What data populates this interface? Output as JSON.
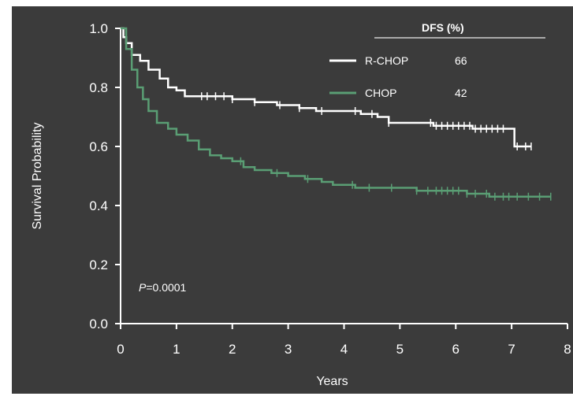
{
  "chart_data": {
    "type": "line",
    "title": "",
    "xlabel": "Years",
    "ylabel": "Survival Probability",
    "xlim": [
      0,
      8
    ],
    "ylim": [
      0,
      1
    ],
    "x_ticks": [
      "0",
      "1",
      "2",
      "3",
      "4",
      "5",
      "6",
      "7",
      "8"
    ],
    "y_ticks": [
      "0.0",
      "0.2",
      "0.4",
      "0.6",
      "0.8",
      "1.0"
    ],
    "legend_header": "DFS (%)",
    "legend_placement": "top-right",
    "annotation_prefix": "P",
    "annotation_value": "=0.0001",
    "series": [
      {
        "name": "R-CHOP",
        "dfs": "66",
        "color": "#ffffff",
        "points": [
          [
            0,
            1.0
          ],
          [
            0.05,
            0.97
          ],
          [
            0.1,
            0.95
          ],
          [
            0.2,
            0.91
          ],
          [
            0.35,
            0.89
          ],
          [
            0.5,
            0.86
          ],
          [
            0.7,
            0.83
          ],
          [
            0.85,
            0.8
          ],
          [
            1.0,
            0.79
          ],
          [
            1.15,
            0.77
          ],
          [
            1.5,
            0.77
          ],
          [
            2.0,
            0.76
          ],
          [
            2.4,
            0.75
          ],
          [
            2.8,
            0.74
          ],
          [
            3.2,
            0.73
          ],
          [
            3.5,
            0.72
          ],
          [
            4.0,
            0.72
          ],
          [
            4.3,
            0.71
          ],
          [
            4.6,
            0.7
          ],
          [
            4.8,
            0.68
          ],
          [
            5.3,
            0.68
          ],
          [
            5.6,
            0.67
          ],
          [
            6.0,
            0.67
          ],
          [
            6.3,
            0.66
          ],
          [
            7.0,
            0.66
          ],
          [
            7.05,
            0.6
          ],
          [
            7.35,
            0.6
          ]
        ],
        "censors": [
          1.45,
          1.55,
          1.7,
          1.85,
          2.0,
          2.4,
          2.85,
          3.2,
          3.6,
          4.2,
          4.5,
          4.8,
          5.55,
          5.65,
          5.75,
          5.85,
          5.95,
          6.05,
          6.15,
          6.25,
          6.35,
          6.45,
          6.55,
          6.65,
          6.75,
          6.85,
          7.1,
          7.25,
          7.35
        ]
      },
      {
        "name": "CHOP",
        "dfs": "42",
        "color": "#5a9e74",
        "points": [
          [
            0,
            1.0
          ],
          [
            0.1,
            0.93
          ],
          [
            0.2,
            0.86
          ],
          [
            0.3,
            0.8
          ],
          [
            0.4,
            0.76
          ],
          [
            0.5,
            0.72
          ],
          [
            0.65,
            0.68
          ],
          [
            0.85,
            0.66
          ],
          [
            1.0,
            0.64
          ],
          [
            1.2,
            0.62
          ],
          [
            1.4,
            0.59
          ],
          [
            1.6,
            0.57
          ],
          [
            1.8,
            0.56
          ],
          [
            2.0,
            0.55
          ],
          [
            2.2,
            0.53
          ],
          [
            2.4,
            0.52
          ],
          [
            2.7,
            0.51
          ],
          [
            3.0,
            0.5
          ],
          [
            3.3,
            0.49
          ],
          [
            3.6,
            0.48
          ],
          [
            3.8,
            0.47
          ],
          [
            4.0,
            0.47
          ],
          [
            4.2,
            0.46
          ],
          [
            5.0,
            0.46
          ],
          [
            5.3,
            0.45
          ],
          [
            6.0,
            0.45
          ],
          [
            6.2,
            0.44
          ],
          [
            6.5,
            0.44
          ],
          [
            6.6,
            0.43
          ],
          [
            7.7,
            0.43
          ]
        ],
        "censors": [
          2.15,
          2.8,
          3.35,
          4.15,
          4.45,
          4.85,
          5.3,
          5.5,
          5.65,
          5.75,
          5.85,
          5.95,
          6.05,
          6.2,
          6.35,
          6.55,
          6.7,
          6.85,
          6.95,
          7.1,
          7.3,
          7.5,
          7.7
        ]
      }
    ]
  }
}
